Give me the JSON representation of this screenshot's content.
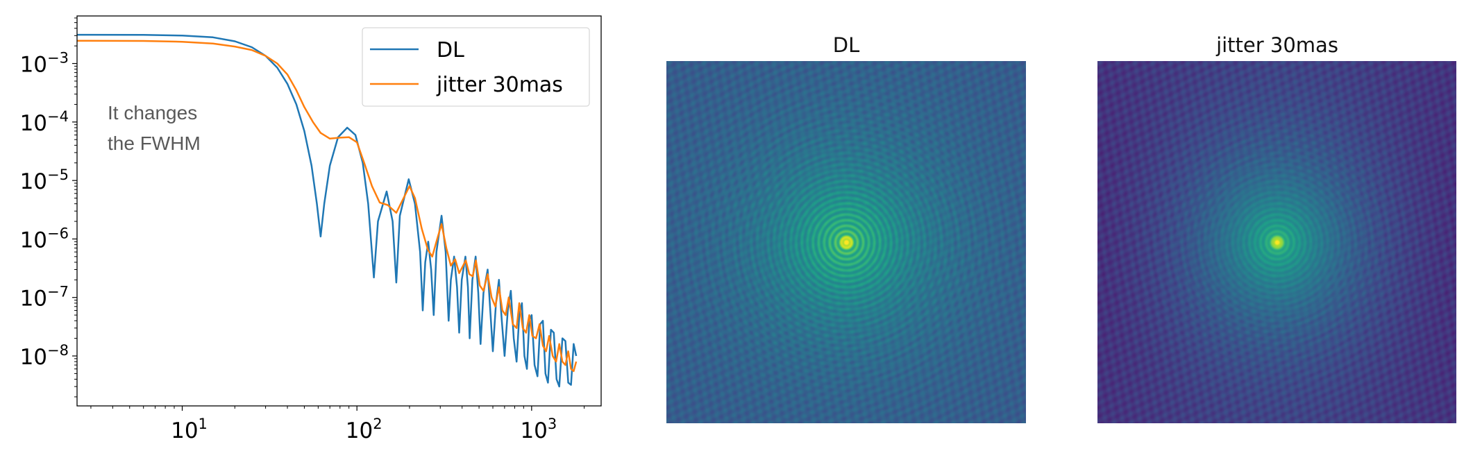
{
  "chart_data": [
    {
      "type": "line",
      "title": "",
      "xlabel": "",
      "ylabel": "",
      "xscale": "log",
      "yscale": "log",
      "xlim": [
        2.5,
        2500
      ],
      "ylim": [
        1.4e-09,
        0.0065
      ],
      "xticks": [
        {
          "base": "10",
          "exp": "1",
          "value": 10
        },
        {
          "base": "10",
          "exp": "2",
          "value": 100
        },
        {
          "base": "10",
          "exp": "3",
          "value": 1000
        }
      ],
      "yticks": [
        {
          "base": "10",
          "exp": "−3",
          "value": 0.001
        },
        {
          "base": "10",
          "exp": "−4",
          "value": 0.0001
        },
        {
          "base": "10",
          "exp": "−5",
          "value": 1e-05
        },
        {
          "base": "10",
          "exp": "−6",
          "value": 1e-06
        },
        {
          "base": "10",
          "exp": "−7",
          "value": 1e-07
        },
        {
          "base": "10",
          "exp": "−8",
          "value": 1e-08
        }
      ],
      "legend_position": "top-right",
      "annotation": [
        "It changes",
        "the FWHM"
      ],
      "series": [
        {
          "name": "DL",
          "color": "#1f77b4",
          "points": [
            [
              2.5,
              0.0031
            ],
            [
              6,
              0.00308
            ],
            [
              10,
              0.003
            ],
            [
              15,
              0.0028
            ],
            [
              20,
              0.0024
            ],
            [
              25,
              0.0019
            ],
            [
              30,
              0.00135
            ],
            [
              35,
              0.00085
            ],
            [
              40,
              0.00045
            ],
            [
              45,
              0.0002
            ],
            [
              50,
              7e-05
            ],
            [
              55,
              1.8e-05
            ],
            [
              59,
              4e-06
            ],
            [
              62,
              1.1e-06
            ],
            [
              65,
              4e-06
            ],
            [
              70,
              1.8e-05
            ],
            [
              78,
              5.5e-05
            ],
            [
              88,
              8e-05
            ],
            [
              98,
              6e-05
            ],
            [
              108,
              2e-05
            ],
            [
              116,
              4e-06
            ],
            [
              125,
              2.2e-07
            ],
            [
              132,
              2e-06
            ],
            [
              148,
              6.5e-06
            ],
            [
              160,
              2e-06
            ],
            [
              168,
              1.8e-07
            ],
            [
              176,
              2.5e-06
            ],
            [
              198,
              1.05e-05
            ],
            [
              215,
              4e-06
            ],
            [
              230,
              6e-07
            ],
            [
              238,
              6e-08
            ],
            [
              246,
              4e-07
            ],
            [
              256,
              9e-07
            ],
            [
              266,
              3e-07
            ],
            [
              275,
              5e-08
            ],
            [
              285,
              6e-07
            ],
            [
              305,
              2.5e-06
            ],
            [
              322,
              6e-07
            ],
            [
              335,
              4e-08
            ],
            [
              345,
              2e-07
            ],
            [
              360,
              5e-07
            ],
            [
              374,
              1.5e-07
            ],
            [
              385,
              2.5e-08
            ],
            [
              398,
              2e-07
            ],
            [
              418,
              5e-07
            ],
            [
              432,
              1.5e-07
            ],
            [
              442,
              2e-08
            ],
            [
              458,
              2e-07
            ],
            [
              478,
              5e-07
            ],
            [
              495,
              1.2e-07
            ],
            [
              510,
              1.6e-08
            ],
            [
              530,
              1.2e-07
            ],
            [
              560,
              3e-07
            ],
            [
              580,
              6e-08
            ],
            [
              600,
              1.2e-08
            ],
            [
              625,
              8e-08
            ],
            [
              650,
              2e-07
            ],
            [
              675,
              4e-08
            ],
            [
              700,
              1e-08
            ],
            [
              730,
              6e-08
            ],
            [
              760,
              1.3e-07
            ],
            [
              790,
              2e-08
            ],
            [
              820,
              8e-09
            ],
            [
              850,
              5e-08
            ],
            [
              880,
              8e-08
            ],
            [
              910,
              1e-08
            ],
            [
              940,
              6e-09
            ],
            [
              970,
              4e-08
            ],
            [
              1000,
              5e-08
            ],
            [
              1040,
              7e-09
            ],
            [
              1080,
              4.5e-09
            ],
            [
              1120,
              3.5e-08
            ],
            [
              1160,
              4e-08
            ],
            [
              1200,
              5e-09
            ],
            [
              1240,
              3.5e-09
            ],
            [
              1290,
              2.8e-08
            ],
            [
              1340,
              2.5e-08
            ],
            [
              1390,
              4e-09
            ],
            [
              1440,
              3e-09
            ],
            [
              1500,
              2e-08
            ],
            [
              1560,
              1.8e-08
            ],
            [
              1620,
              3.5e-09
            ],
            [
              1680,
              3.2e-09
            ],
            [
              1740,
              1.6e-08
            ],
            [
              1800,
              1e-08
            ]
          ]
        },
        {
          "name": "jitter 30mas",
          "color": "#ff7f0e",
          "points": [
            [
              2.5,
              0.00245
            ],
            [
              6,
              0.00243
            ],
            [
              10,
              0.00235
            ],
            [
              15,
              0.0022
            ],
            [
              20,
              0.00195
            ],
            [
              25,
              0.0017
            ],
            [
              30,
              0.00135
            ],
            [
              35,
              0.001
            ],
            [
              40,
              0.00065
            ],
            [
              45,
              0.00035
            ],
            [
              50,
              0.00018
            ],
            [
              56,
              0.0001
            ],
            [
              62,
              6.5e-05
            ],
            [
              70,
              5.2e-05
            ],
            [
              80,
              5.4e-05
            ],
            [
              90,
              5.5e-05
            ],
            [
              100,
              4.5e-05
            ],
            [
              110,
              2e-05
            ],
            [
              122,
              8e-06
            ],
            [
              135,
              4.2e-06
            ],
            [
              150,
              3.8e-06
            ],
            [
              168,
              2.8e-06
            ],
            [
              185,
              5e-06
            ],
            [
              200,
              8e-06
            ],
            [
              215,
              5e-06
            ],
            [
              235,
              1.5e-06
            ],
            [
              255,
              6.5e-07
            ],
            [
              270,
              5e-07
            ],
            [
              285,
              9e-07
            ],
            [
              305,
              1.8e-06
            ],
            [
              325,
              7e-07
            ],
            [
              345,
              3.5e-07
            ],
            [
              365,
              4.5e-07
            ],
            [
              385,
              2.6e-07
            ],
            [
              405,
              3.5e-07
            ],
            [
              420,
              4.3e-07
            ],
            [
              440,
              2.5e-07
            ],
            [
              460,
              2.3e-07
            ],
            [
              480,
              4.3e-07
            ],
            [
              505,
              1.6e-07
            ],
            [
              530,
              1.3e-07
            ],
            [
              560,
              2.5e-07
            ],
            [
              590,
              1e-07
            ],
            [
              620,
              7e-08
            ],
            [
              650,
              1.5e-07
            ],
            [
              680,
              6e-08
            ],
            [
              710,
              5e-08
            ],
            [
              740,
              1e-07
            ],
            [
              780,
              3.5e-08
            ],
            [
              820,
              3e-08
            ],
            [
              850,
              8e-08
            ],
            [
              890,
              3e-08
            ],
            [
              930,
              2.5e-08
            ],
            [
              970,
              5e-08
            ],
            [
              1010,
              2.2e-08
            ],
            [
              1060,
              2e-08
            ],
            [
              1110,
              3.5e-08
            ],
            [
              1160,
              1.5e-08
            ],
            [
              1210,
              1.2e-08
            ],
            [
              1260,
              2.2e-08
            ],
            [
              1320,
              1e-08
            ],
            [
              1380,
              8e-09
            ],
            [
              1440,
              1.6e-08
            ],
            [
              1500,
              8e-09
            ],
            [
              1560,
              7e-09
            ],
            [
              1620,
              1.2e-08
            ],
            [
              1680,
              6e-09
            ],
            [
              1740,
              5.5e-09
            ],
            [
              1800,
              8e-09
            ]
          ]
        }
      ]
    }
  ],
  "images": [
    {
      "title": "DL",
      "colormap": "viridis"
    },
    {
      "title": "jitter 30mas",
      "colormap": "viridis"
    }
  ]
}
